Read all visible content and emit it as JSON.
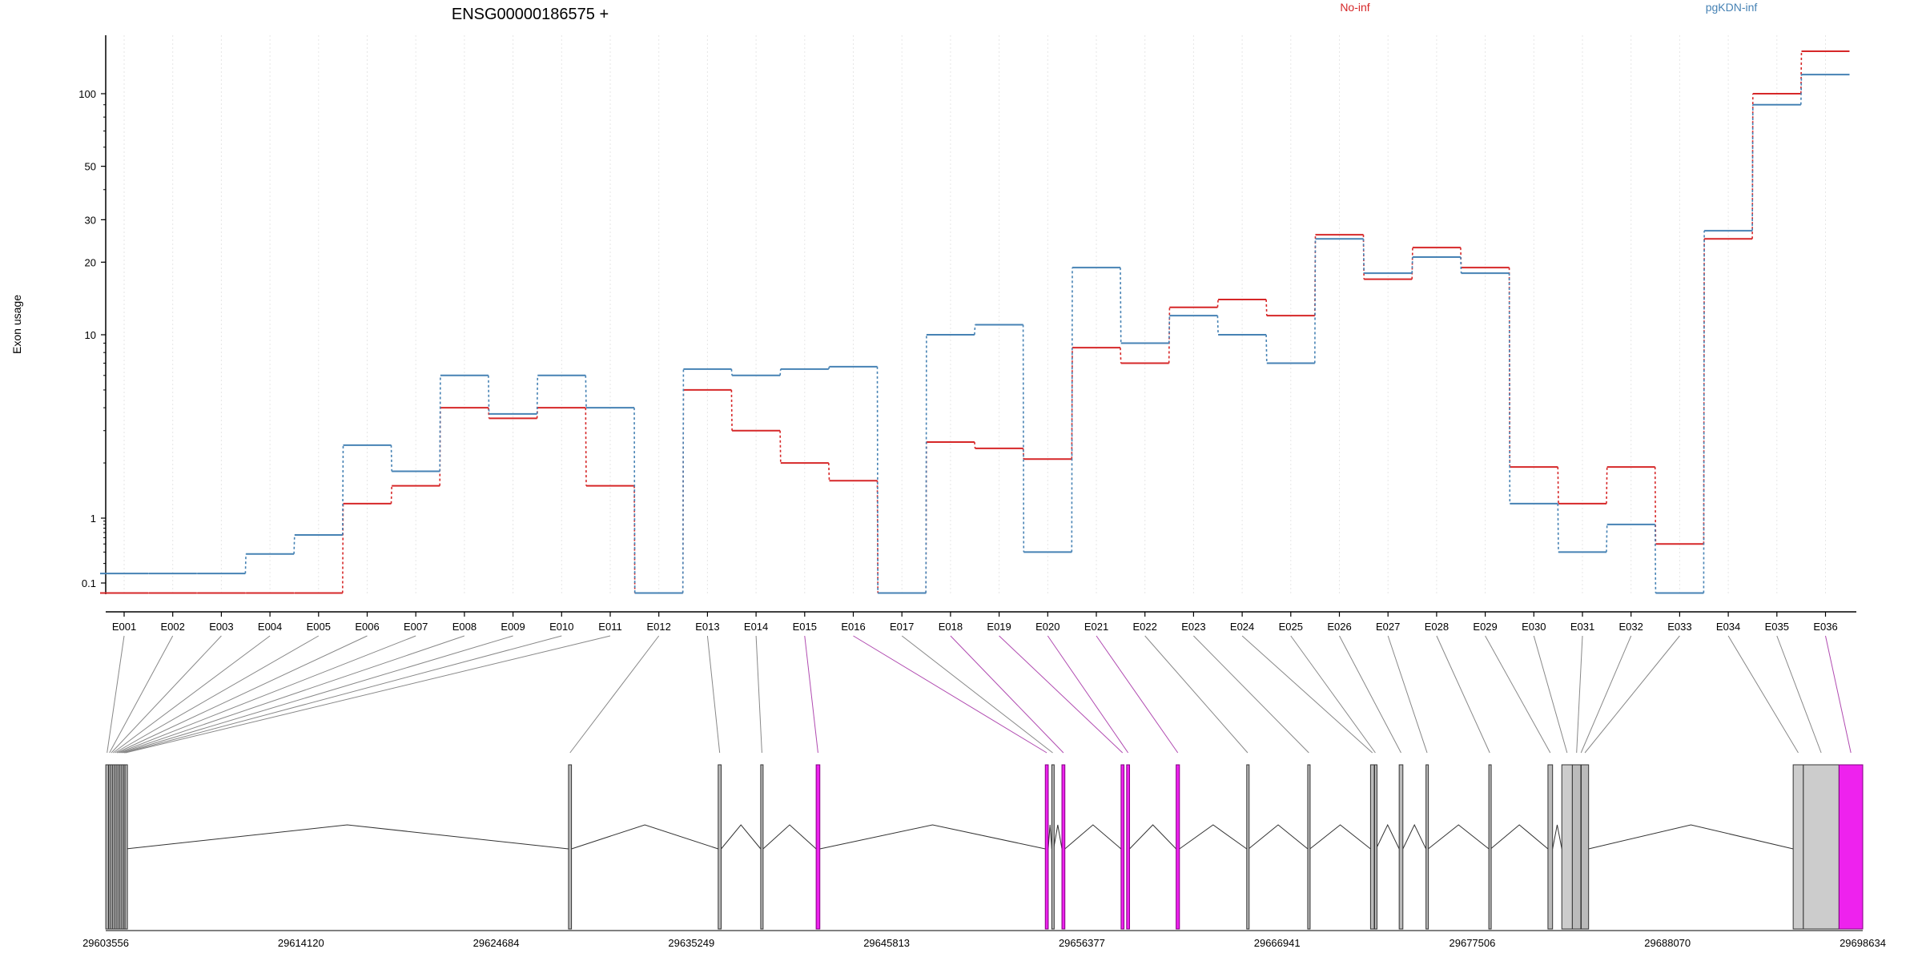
{
  "chart_data": {
    "type": "line",
    "title": "ENSG00000186575 +",
    "ylabel": "Exon usage",
    "yscale": "log",
    "yticks": [
      0.1,
      1,
      10,
      20,
      30,
      50,
      100
    ],
    "ytick_labels": [
      "0.1",
      "1",
      "10",
      "20",
      "30",
      "50",
      "100"
    ],
    "exons": [
      "E001",
      "E002",
      "E003",
      "E004",
      "E005",
      "E006",
      "E007",
      "E008",
      "E009",
      "E010",
      "E011",
      "E012",
      "E013",
      "E014",
      "E015",
      "E016",
      "E017",
      "E018",
      "E019",
      "E020",
      "E021",
      "E022",
      "E023",
      "E024",
      "E025",
      "E026",
      "E027",
      "E028",
      "E029",
      "E030",
      "E031",
      "E032",
      "E033",
      "E034",
      "E035",
      "E036"
    ],
    "series": [
      {
        "name": "No-inf",
        "color": "#d62728",
        "values": [
          0.07,
          0.07,
          0.07,
          0.07,
          0.07,
          1.2,
          1.5,
          4,
          3.5,
          4,
          1.5,
          0.07,
          5,
          3,
          2,
          1.6,
          0.07,
          2.6,
          2.4,
          2.1,
          8.5,
          7,
          13,
          14,
          12,
          26,
          17,
          23,
          19,
          1.9,
          1.2,
          1.9,
          0.4,
          25,
          100,
          150
        ]
      },
      {
        "name": "pgKDN-inf",
        "color": "#4682b4",
        "values": [
          0.14,
          0.14,
          0.14,
          0.28,
          0.55,
          2.5,
          1.8,
          6,
          3.7,
          6,
          4,
          0.07,
          6.5,
          6,
          6.5,
          6.7,
          0.07,
          10,
          11,
          0.3,
          19,
          9,
          12,
          10,
          7,
          25,
          18,
          21,
          18,
          1.2,
          0.3,
          0.8,
          0.07,
          27,
          90,
          120
        ]
      }
    ],
    "genome_ticks": [
      "29603556",
      "29614120",
      "29624684",
      "29635249",
      "29645813",
      "29656377",
      "29666941",
      "29677506",
      "29688070",
      "29698634"
    ],
    "gene_model": {
      "start": 29603556,
      "end": 29698634,
      "exon_mapping": [
        {
          "start": 29603560,
          "end": 29603700,
          "highlight": false
        },
        {
          "start": 29603720,
          "end": 29603800,
          "highlight": false
        },
        {
          "start": 29603820,
          "end": 29603900,
          "highlight": false
        },
        {
          "start": 29603920,
          "end": 29604000,
          "highlight": false
        },
        {
          "start": 29604020,
          "end": 29604100,
          "highlight": false
        },
        {
          "start": 29604120,
          "end": 29604200,
          "highlight": false
        },
        {
          "start": 29604220,
          "end": 29604300,
          "highlight": false
        },
        {
          "start": 29604320,
          "end": 29604400,
          "highlight": false
        },
        {
          "start": 29604420,
          "end": 29604500,
          "highlight": false
        },
        {
          "start": 29604520,
          "end": 29604580,
          "highlight": false
        },
        {
          "start": 29604600,
          "end": 29604650,
          "highlight": false
        },
        {
          "start": 29628600,
          "end": 29628760,
          "highlight": false
        },
        {
          "start": 29636700,
          "end": 29636860,
          "highlight": false
        },
        {
          "start": 29639000,
          "end": 29639130,
          "highlight": false
        },
        {
          "start": 29642000,
          "end": 29642200,
          "highlight": true
        },
        {
          "start": 29654400,
          "end": 29654560,
          "highlight": true
        },
        {
          "start": 29654750,
          "end": 29654850,
          "highlight": false
        },
        {
          "start": 29655300,
          "end": 29655460,
          "highlight": true
        },
        {
          "start": 29658500,
          "end": 29658660,
          "highlight": true
        },
        {
          "start": 29658800,
          "end": 29658960,
          "highlight": true
        },
        {
          "start": 29661480,
          "end": 29661660,
          "highlight": true
        },
        {
          "start": 29665300,
          "end": 29665400,
          "highlight": false
        },
        {
          "start": 29668600,
          "end": 29668720,
          "highlight": false
        },
        {
          "start": 29672000,
          "end": 29672200,
          "highlight": false
        },
        {
          "start": 29672220,
          "end": 29672300,
          "highlight": false
        },
        {
          "start": 29673550,
          "end": 29673750,
          "highlight": false
        },
        {
          "start": 29675000,
          "end": 29675120,
          "highlight": false
        },
        {
          "start": 29678400,
          "end": 29678500,
          "highlight": false
        },
        {
          "start": 29681600,
          "end": 29681850,
          "highlight": false
        },
        {
          "start": 29682350,
          "end": 29682920,
          "highlight": false
        },
        {
          "start": 29682920,
          "end": 29683380,
          "highlight": false
        },
        {
          "start": 29683380,
          "end": 29683400,
          "highlight": false
        },
        {
          "start": 29683400,
          "end": 29683800,
          "highlight": false
        },
        {
          "start": 29694870,
          "end": 29695420,
          "highlight": false
        },
        {
          "start": 29695420,
          "end": 29697350,
          "highlight": false
        },
        {
          "start": 29697350,
          "end": 29698634,
          "highlight": true
        }
      ]
    }
  }
}
